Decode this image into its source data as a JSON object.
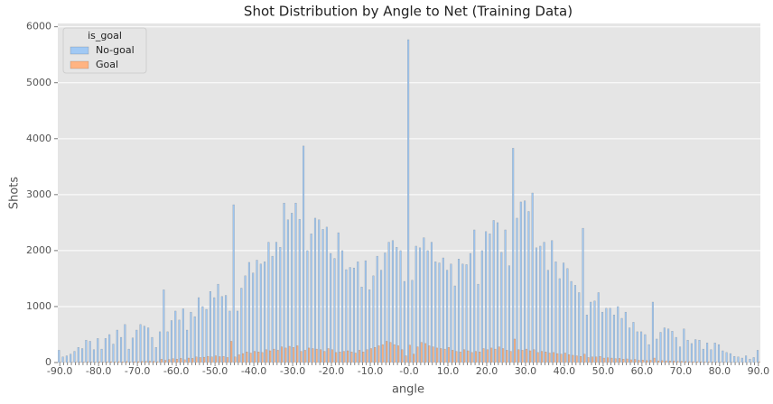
{
  "chart_data": {
    "type": "bar",
    "title": "Shot Distribution by Angle to Net (Training Data)",
    "x_label": "angle",
    "y_label": "Shots",
    "legend_title": "is_goal",
    "legend": "upper left",
    "grid": true,
    "categories": [
      "-90.0",
      null,
      null,
      null,
      null,
      null,
      null,
      null,
      null,
      null,
      "-80.0",
      null,
      null,
      null,
      null,
      null,
      null,
      null,
      null,
      null,
      "-70.0",
      null,
      null,
      null,
      null,
      null,
      null,
      null,
      null,
      null,
      "-60.0",
      null,
      null,
      null,
      null,
      null,
      null,
      null,
      null,
      null,
      "-50.0",
      null,
      null,
      null,
      null,
      null,
      null,
      null,
      null,
      null,
      "-40.0",
      null,
      null,
      null,
      null,
      null,
      null,
      null,
      null,
      null,
      "-30.0",
      null,
      null,
      null,
      null,
      null,
      null,
      null,
      null,
      null,
      "-20.0",
      null,
      null,
      null,
      null,
      null,
      null,
      null,
      null,
      null,
      "-10.0",
      null,
      null,
      null,
      null,
      null,
      null,
      null,
      null,
      null,
      "-0.0",
      null,
      null,
      null,
      null,
      null,
      null,
      null,
      null,
      null,
      "10.0",
      null,
      null,
      null,
      null,
      null,
      null,
      null,
      null,
      null,
      "20.0",
      null,
      null,
      null,
      null,
      null,
      null,
      null,
      null,
      null,
      "30.0",
      null,
      null,
      null,
      null,
      null,
      null,
      null,
      null,
      null,
      "40.0",
      null,
      null,
      null,
      null,
      null,
      null,
      null,
      null,
      null,
      "50.0",
      null,
      null,
      null,
      null,
      null,
      null,
      null,
      null,
      null,
      "60.0",
      null,
      null,
      null,
      null,
      null,
      null,
      null,
      null,
      null,
      "70.0",
      null,
      null,
      null,
      null,
      null,
      null,
      null,
      null,
      null,
      "80.0",
      null,
      null,
      null,
      null,
      null,
      null,
      null,
      null,
      null,
      "90.0"
    ],
    "series": [
      {
        "name": "No-goal",
        "color": "#a1c9f4",
        "values": [
          220,
          100,
          120,
          150,
          200,
          270,
          250,
          400,
          380,
          230,
          430,
          240,
          430,
          500,
          330,
          580,
          450,
          680,
          240,
          440,
          580,
          680,
          650,
          620,
          450,
          270,
          550,
          1300,
          550,
          750,
          920,
          760,
          960,
          580,
          900,
          820,
          1160,
          1000,
          950,
          1270,
          1160,
          1400,
          1180,
          1200,
          920,
          2820,
          920,
          1330,
          1550,
          1790,
          1600,
          1830,
          1760,
          1800,
          2150,
          1900,
          2150,
          2060,
          2850,
          2550,
          2670,
          2850,
          2560,
          3870,
          2000,
          2300,
          2580,
          2550,
          2380,
          2420,
          1950,
          1860,
          2320,
          2000,
          1660,
          1700,
          1690,
          1800,
          1350,
          1820,
          1300,
          1550,
          1900,
          1650,
          1960,
          2150,
          2180,
          2060,
          2000,
          1450,
          5770,
          1470,
          2080,
          2050,
          2230,
          2000,
          2150,
          1800,
          1780,
          1870,
          1650,
          1760,
          1370,
          1850,
          1760,
          1750,
          1950,
          2370,
          1400,
          2000,
          2340,
          2300,
          2540,
          2500,
          1970,
          2370,
          1730,
          3830,
          2580,
          2870,
          2890,
          2700,
          3030,
          2050,
          2080,
          2150,
          1650,
          2180,
          1800,
          1500,
          1780,
          1680,
          1450,
          1380,
          1250,
          2400,
          850,
          1080,
          1100,
          1250,
          900,
          970,
          970,
          850,
          1000,
          790,
          900,
          620,
          720,
          550,
          550,
          500,
          320,
          1080,
          420,
          540,
          620,
          600,
          560,
          450,
          280,
          600,
          400,
          340,
          410,
          400,
          240,
          350,
          230,
          350,
          320,
          210,
          180,
          160,
          110,
          100,
          80,
          120,
          60,
          90,
          220
        ]
      },
      {
        "name": "Goal",
        "color": "#ffb482",
        "values": [
          5,
          2,
          3,
          4,
          6,
          8,
          7,
          10,
          9,
          6,
          12,
          8,
          12,
          14,
          10,
          16,
          12,
          18,
          8,
          14,
          16,
          20,
          22,
          24,
          20,
          15,
          60,
          40,
          55,
          70,
          60,
          75,
          50,
          80,
          75,
          100,
          90,
          95,
          110,
          100,
          120,
          105,
          110,
          90,
          380,
          100,
          140,
          160,
          190,
          170,
          200,
          190,
          180,
          230,
          210,
          240,
          220,
          280,
          260,
          290,
          270,
          300,
          200,
          220,
          260,
          250,
          240,
          230,
          200,
          250,
          230,
          180,
          190,
          200,
          210,
          190,
          170,
          220,
          190,
          230,
          250,
          270,
          300,
          320,
          380,
          360,
          320,
          300,
          230,
          120,
          310,
          150,
          280,
          360,
          340,
          300,
          280,
          260,
          250,
          240,
          270,
          220,
          200,
          190,
          230,
          210,
          180,
          200,
          190,
          250,
          230,
          260,
          240,
          280,
          250,
          220,
          200,
          420,
          230,
          220,
          240,
          210,
          230,
          180,
          200,
          190,
          170,
          180,
          160,
          150,
          170,
          140,
          130,
          120,
          110,
          150,
          90,
          100,
          100,
          110,
          80,
          85,
          80,
          70,
          75,
          60,
          65,
          50,
          55,
          40,
          45,
          35,
          40,
          80,
          30,
          35,
          30,
          28,
          25,
          20,
          22,
          18,
          16,
          15,
          14,
          12,
          10,
          10,
          8,
          8,
          6,
          5,
          5,
          4,
          4,
          3,
          3,
          2,
          2,
          2,
          10
        ]
      }
    ],
    "ylim": [
      0,
      6060
    ],
    "yticks": [
      0,
      1000,
      2000,
      3000,
      4000,
      5000,
      6000
    ]
  }
}
